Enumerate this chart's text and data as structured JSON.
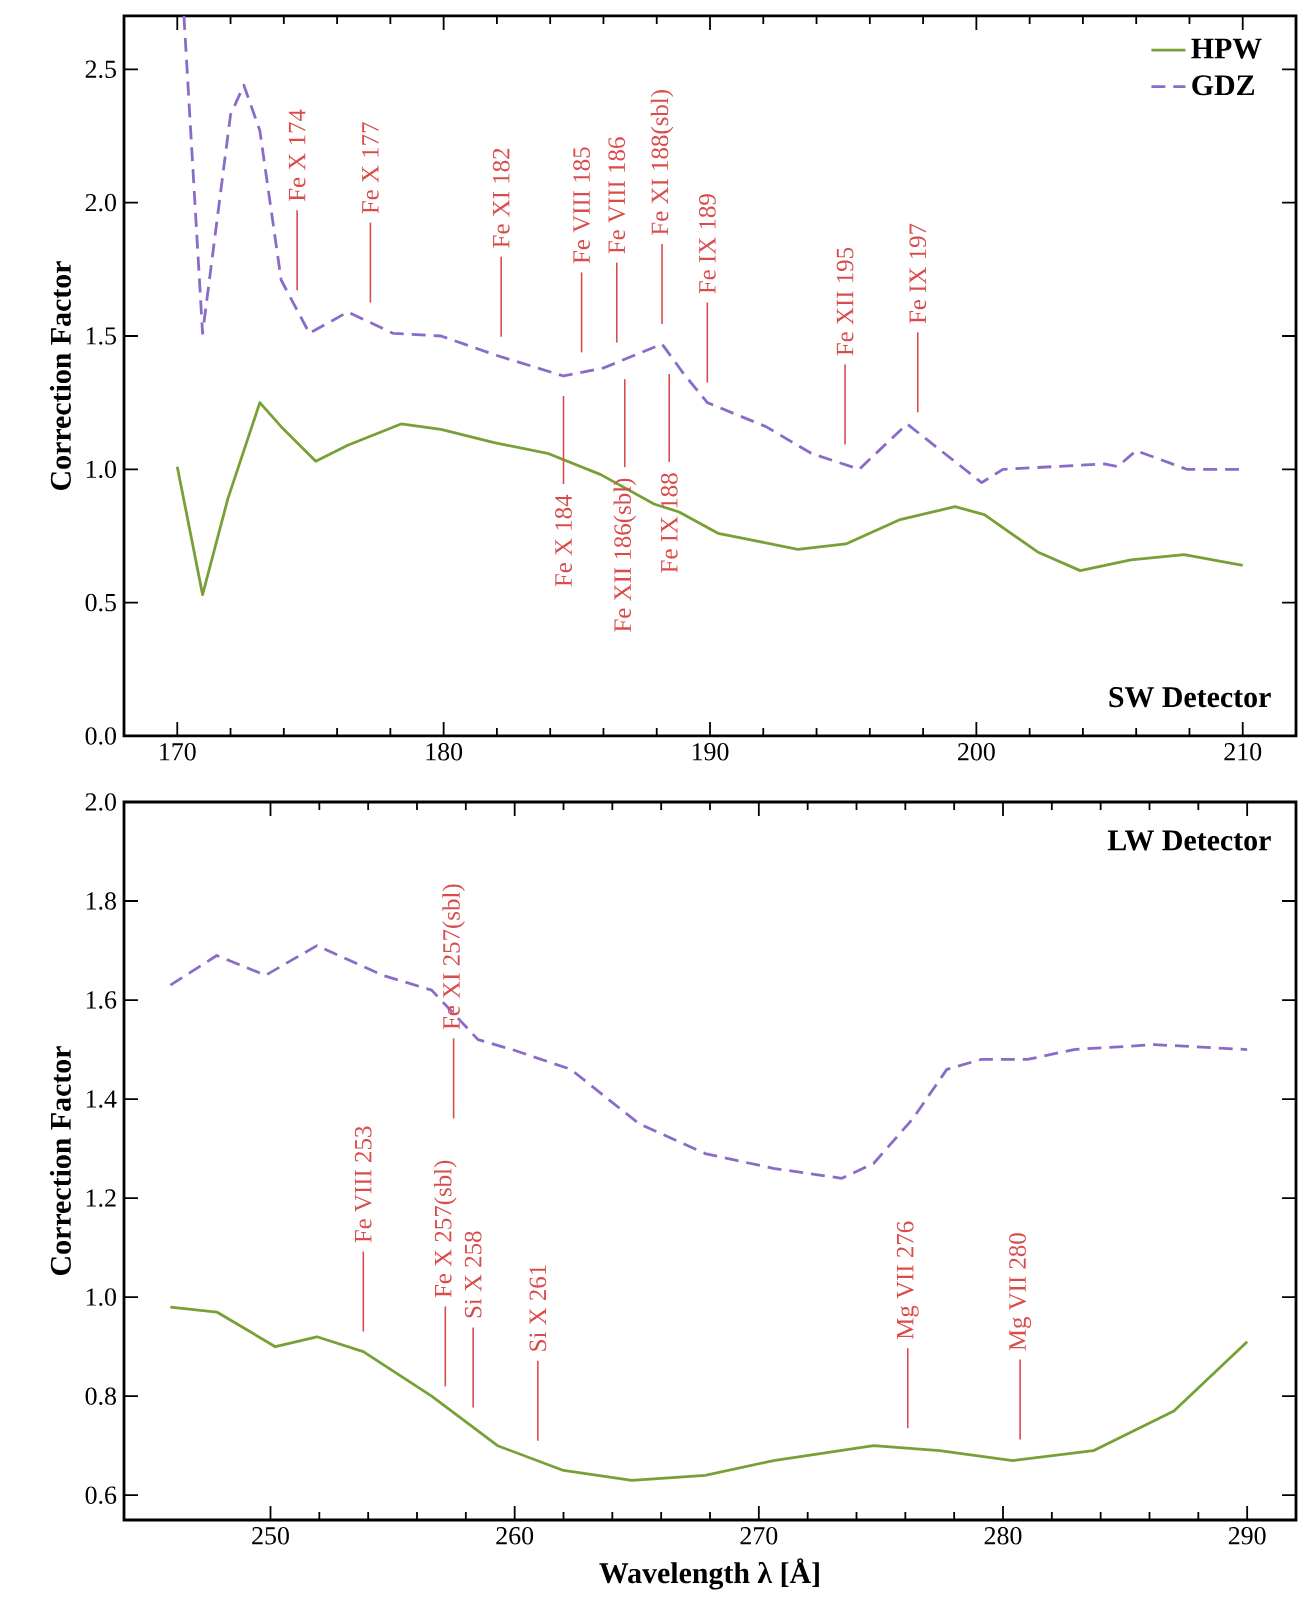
{
  "chart_data": [
    {
      "type": "line",
      "ylabel": "Correction Factor",
      "xlim": [
        168,
        212
      ],
      "ylim": [
        0,
        2.7
      ],
      "xticks": [
        170,
        180,
        190,
        200,
        210
      ],
      "yticks": [
        {
          "value": 0,
          "label": "0.0"
        },
        0.5,
        {
          "value": 1,
          "label": "1.0"
        },
        1.5,
        {
          "value": 2,
          "label": "2.0"
        },
        2.5
      ],
      "legend": "top right",
      "series": [
        {
          "name": "HPW",
          "color": "#77a136",
          "line_style": "solid",
          "x": [
            170.0,
            170.95,
            171.9,
            173.1,
            173.9,
            175.2,
            176.4,
            178.4,
            179.9,
            181.9,
            183.9,
            185.9,
            187.9,
            188.84,
            190.3,
            191.3,
            193.3,
            195.1,
            197.1,
            199.2,
            200.3,
            202.3,
            203.9,
            205.8,
            207.8,
            210.0
          ],
          "values": [
            1.01,
            0.53,
            0.89,
            1.25,
            1.16,
            1.03,
            1.09,
            1.17,
            1.15,
            1.1,
            1.06,
            0.98,
            0.87,
            0.84,
            0.76,
            0.74,
            0.7,
            0.72,
            0.81,
            0.86,
            0.83,
            0.69,
            0.62,
            0.66,
            0.68,
            0.64
          ]
        },
        {
          "name": "GDZ",
          "color": "#8b6bc9",
          "line_style": "dashed",
          "x": [
            170.25,
            170.95,
            172.0,
            172.5,
            173.1,
            173.9,
            174.96,
            176.4,
            178.1,
            179.9,
            181.9,
            184.5,
            186.0,
            188.2,
            189.0,
            189.9,
            192.1,
            193.8,
            195.6,
            197.4,
            200.2,
            201.0,
            204.8,
            205.3,
            206.0,
            207.9,
            210.0
          ],
          "values": [
            2.7,
            1.51,
            2.33,
            2.44,
            2.27,
            1.71,
            1.51,
            1.59,
            1.51,
            1.5,
            1.43,
            1.35,
            1.38,
            1.47,
            1.36,
            1.25,
            1.16,
            1.06,
            1.0,
            1.17,
            0.95,
            1.0,
            1.02,
            1.01,
            1.07,
            1.0,
            1.0
          ]
        }
      ],
      "ref_lines": [
        {
          "axis": "x",
          "value": 174.5,
          "label": "Fe X 174",
          "color": "#d94c4c"
        },
        {
          "axis": "x",
          "value": 177.25,
          "label": "Fe X 177",
          "color": "#d94c4c"
        },
        {
          "axis": "x",
          "value": 182.16,
          "label": "Fe XI 182",
          "color": "#d94c4c"
        },
        {
          "axis": "x",
          "value": 185.18,
          "label": "Fe VIII 185",
          "color": "#d94c4c"
        },
        {
          "axis": "x",
          "value": 186.5,
          "label": "Fe VIII 186",
          "color": "#d94c4c"
        },
        {
          "axis": "x",
          "value": 188.2,
          "label": "Fe XI 188(sbl)",
          "color": "#d94c4c"
        },
        {
          "axis": "x",
          "value": 189.9,
          "label": "Fe IX 189",
          "color": "#d94c4c"
        },
        {
          "axis": "x",
          "value": 195.07,
          "label": "Fe XII 195",
          "color": "#d94c4c"
        },
        {
          "axis": "x",
          "value": 197.8,
          "label": "Fe IX 197",
          "color": "#d94c4c"
        },
        {
          "axis": "x",
          "value": 184.5,
          "label": "Fe X 184",
          "color": "#d94c4c"
        },
        {
          "axis": "x",
          "value": 186.8,
          "label": "Fe XII 186(sbl)",
          "color": "#d94c4c"
        },
        {
          "axis": "x",
          "value": 188.47,
          "label": "Fe IX 188",
          "color": "#d94c4c"
        }
      ],
      "annotations": [
        "SW Detector"
      ]
    },
    {
      "type": "line",
      "xlabel": "Wavelength λ [Å]",
      "ylabel": "Correction Factor",
      "xlim": [
        244,
        292
      ],
      "ylim": [
        0.55,
        2.0
      ],
      "xticks": [
        250,
        260,
        270,
        280,
        290
      ],
      "yticks": [
        0.6,
        0.8,
        {
          "value": 1,
          "label": "1.0"
        },
        1.2,
        1.4,
        1.6,
        1.8,
        {
          "value": 2,
          "label": "2.0"
        }
      ],
      "series": [
        {
          "color": "#77a136",
          "line_style": "solid",
          "x": [
            245.9,
            247.8,
            250.2,
            251.9,
            253.8,
            256.6,
            259.3,
            262.0,
            264.8,
            267.8,
            270.6,
            274.7,
            277.4,
            280.4,
            283.7,
            287.0,
            290.0
          ],
          "values": [
            0.98,
            0.97,
            0.9,
            0.92,
            0.89,
            0.8,
            0.7,
            0.65,
            0.63,
            0.64,
            0.67,
            0.7,
            0.69,
            0.67,
            0.69,
            0.77,
            0.91
          ]
        },
        {
          "color": "#8b6bc9",
          "line_style": "dashed",
          "x": [
            245.9,
            247.8,
            249.8,
            251.9,
            254.6,
            256.6,
            258.5,
            259.9,
            262.3,
            265.1,
            267.8,
            270.6,
            273.4,
            274.7,
            276.3,
            277.7,
            279.1,
            281.0,
            282.9,
            286.2,
            290.0
          ],
          "values": [
            1.63,
            1.69,
            1.65,
            1.71,
            1.65,
            1.62,
            1.52,
            1.5,
            1.46,
            1.35,
            1.29,
            1.26,
            1.24,
            1.27,
            1.36,
            1.46,
            1.48,
            1.48,
            1.5,
            1.51,
            1.5
          ]
        }
      ],
      "ref_lines": [
        {
          "axis": "x",
          "value": 253.8,
          "label": "Fe VIII 253",
          "color": "#d94c4c"
        },
        {
          "axis": "x",
          "value": 257.16,
          "label": "Fe X 257(sbl)",
          "color": "#d94c4c"
        },
        {
          "axis": "x",
          "value": 258.3,
          "label": "Si X 258",
          "color": "#d94c4c"
        },
        {
          "axis": "x",
          "value": 257.5,
          "label": "Fe XI 257(sbl)",
          "color": "#d94c4c"
        },
        {
          "axis": "x",
          "value": 260.95,
          "label": "Si X 261",
          "color": "#d94c4c"
        },
        {
          "axis": "x",
          "value": 276.1,
          "label": "Mg VII 276",
          "color": "#d94c4c"
        },
        {
          "axis": "x",
          "value": 280.7,
          "label": "Mg VII 280",
          "color": "#d94c4c"
        }
      ],
      "annotations": [
        "LW Detector"
      ]
    }
  ]
}
